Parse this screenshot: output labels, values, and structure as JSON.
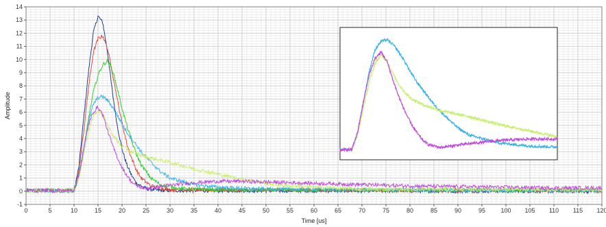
{
  "chart_data": {
    "type": "line",
    "title": "",
    "xlabel": "Time [us]",
    "ylabel": "Amplitude",
    "xlim": [
      0,
      120
    ],
    "ylim": [
      -1,
      14
    ],
    "xticks": [
      0,
      5,
      10,
      15,
      20,
      25,
      30,
      35,
      40,
      45,
      50,
      55,
      60,
      65,
      70,
      75,
      80,
      85,
      90,
      95,
      100,
      105,
      110,
      115,
      120
    ],
    "yticks": [
      -1,
      0,
      1,
      2,
      3,
      4,
      5,
      6,
      7,
      8,
      9,
      10,
      11,
      12,
      13,
      14
    ],
    "grid": true,
    "legend": "none",
    "series": [
      {
        "color": "#1f3f8f",
        "points": [
          [
            0,
            0.05
          ],
          [
            10,
            0.05
          ],
          [
            11,
            1.8
          ],
          [
            12,
            5.5
          ],
          [
            13,
            9.0
          ],
          [
            14,
            12.0
          ],
          [
            15,
            13.3
          ],
          [
            16,
            12.8
          ],
          [
            17,
            10.5
          ],
          [
            18,
            7.5
          ],
          [
            19,
            5.0
          ],
          [
            20,
            3.2
          ],
          [
            21,
            2.0
          ],
          [
            22,
            1.2
          ],
          [
            23,
            0.6
          ],
          [
            25,
            0.2
          ],
          [
            28,
            0.05
          ],
          [
            120,
            0.0
          ]
        ]
      },
      {
        "color": "#e64a3b",
        "points": [
          [
            0,
            0.05
          ],
          [
            10,
            0.05
          ],
          [
            11,
            1.5
          ],
          [
            12,
            4.5
          ],
          [
            13,
            7.8
          ],
          [
            14,
            10.5
          ],
          [
            15,
            11.6
          ],
          [
            16,
            11.8
          ],
          [
            17,
            10.8
          ],
          [
            18,
            9.0
          ],
          [
            19,
            7.0
          ],
          [
            20,
            5.2
          ],
          [
            21,
            3.6
          ],
          [
            22,
            2.5
          ],
          [
            23,
            1.6
          ],
          [
            24,
            1.0
          ],
          [
            26,
            0.4
          ],
          [
            30,
            0.1
          ],
          [
            120,
            0.05
          ]
        ]
      },
      {
        "color": "#33cc33",
        "points": [
          [
            0,
            0.05
          ],
          [
            10,
            0.05
          ],
          [
            11,
            1.0
          ],
          [
            12,
            3.0
          ],
          [
            13,
            5.5
          ],
          [
            14,
            7.5
          ],
          [
            15,
            8.8
          ],
          [
            16,
            9.6
          ],
          [
            17,
            9.9
          ],
          [
            18,
            9.2
          ],
          [
            19,
            7.8
          ],
          [
            20,
            6.3
          ],
          [
            21,
            5.0
          ],
          [
            22,
            3.8
          ],
          [
            23,
            2.8
          ],
          [
            24,
            2.0
          ],
          [
            26,
            1.0
          ],
          [
            28,
            0.5
          ],
          [
            32,
            0.2
          ],
          [
            40,
            0.1
          ],
          [
            120,
            0.05
          ]
        ]
      },
      {
        "color": "#3ab4e8",
        "points": [
          [
            0,
            0.05
          ],
          [
            10,
            0.05
          ],
          [
            11,
            1.2
          ],
          [
            12,
            3.2
          ],
          [
            13,
            5.2
          ],
          [
            14,
            6.6
          ],
          [
            15,
            7.1
          ],
          [
            16,
            7.2
          ],
          [
            17,
            6.9
          ],
          [
            18,
            6.4
          ],
          [
            19,
            5.8
          ],
          [
            20,
            5.1
          ],
          [
            21,
            4.5
          ],
          [
            22,
            4.0
          ],
          [
            23,
            3.5
          ],
          [
            24,
            3.0
          ],
          [
            26,
            2.2
          ],
          [
            28,
            1.5
          ],
          [
            30,
            1.0
          ],
          [
            35,
            0.5
          ],
          [
            40,
            0.3
          ],
          [
            50,
            0.15
          ],
          [
            120,
            0.05
          ]
        ]
      },
      {
        "color": "#c8ee6e",
        "points": [
          [
            0,
            0.05
          ],
          [
            10,
            0.05
          ],
          [
            11,
            1.0
          ],
          [
            12,
            2.8
          ],
          [
            13,
            4.5
          ],
          [
            14,
            5.7
          ],
          [
            15,
            6.2
          ],
          [
            16,
            5.8
          ],
          [
            17,
            5.0
          ],
          [
            18,
            4.3
          ],
          [
            19,
            3.8
          ],
          [
            20,
            3.4
          ],
          [
            22,
            3.0
          ],
          [
            25,
            2.6
          ],
          [
            30,
            2.2
          ],
          [
            35,
            1.7
          ],
          [
            40,
            1.3
          ],
          [
            45,
            0.9
          ],
          [
            50,
            0.6
          ],
          [
            55,
            0.4
          ],
          [
            60,
            0.3
          ],
          [
            70,
            0.15
          ],
          [
            120,
            0.1
          ]
        ]
      },
      {
        "color": "#c04adc",
        "points": [
          [
            0,
            0.05
          ],
          [
            10,
            0.05
          ],
          [
            11,
            1.2
          ],
          [
            12,
            3.2
          ],
          [
            13,
            5.0
          ],
          [
            14,
            6.0
          ],
          [
            15,
            6.4
          ],
          [
            16,
            5.8
          ],
          [
            17,
            4.6
          ],
          [
            18,
            3.5
          ],
          [
            19,
            2.6
          ],
          [
            20,
            1.8
          ],
          [
            21,
            1.2
          ],
          [
            22,
            0.7
          ],
          [
            23,
            0.4
          ],
          [
            25,
            0.2
          ],
          [
            30,
            0.45
          ],
          [
            35,
            0.65
          ],
          [
            40,
            0.75
          ],
          [
            45,
            0.75
          ],
          [
            50,
            0.7
          ],
          [
            60,
            0.6
          ],
          [
            70,
            0.5
          ],
          [
            80,
            0.4
          ],
          [
            90,
            0.35
          ],
          [
            100,
            0.3
          ],
          [
            110,
            0.25
          ],
          [
            120,
            0.25
          ]
        ]
      }
    ]
  }
}
